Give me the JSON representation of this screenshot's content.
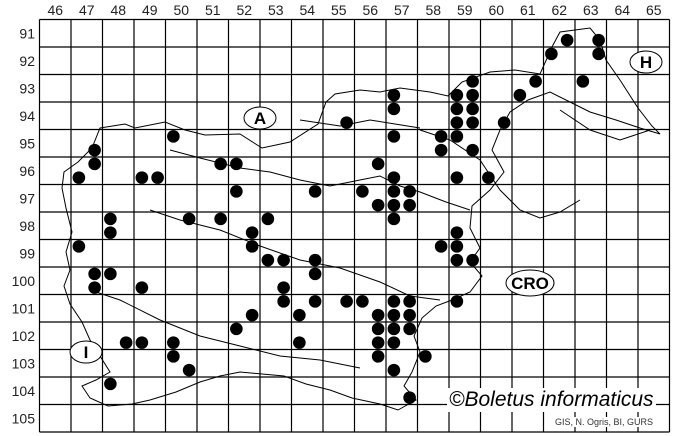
{
  "map": {
    "columns": [
      "46",
      "47",
      "48",
      "49",
      "50",
      "51",
      "52",
      "53",
      "54",
      "55",
      "56",
      "57",
      "58",
      "59",
      "60",
      "61",
      "62",
      "63",
      "64",
      "65"
    ],
    "rows": [
      "91",
      "92",
      "93",
      "94",
      "95",
      "96",
      "97",
      "98",
      "99",
      "100",
      "101",
      "102",
      "103",
      "104",
      "105"
    ],
    "country_labels": {
      "austria": "A",
      "hungary": "H",
      "italy": "I",
      "croatia": "CRO"
    },
    "copyright": "©Boletus informaticus",
    "credits": "GIS, N. Ogris, BI, GURS",
    "dot_color": "#000000",
    "records": [
      [
        62.25,
        91.25
      ],
      [
        63.25,
        91.25
      ],
      [
        61.75,
        91.75
      ],
      [
        63.25,
        91.75
      ],
      [
        59.25,
        92.75
      ],
      [
        61.25,
        92.75
      ],
      [
        62.75,
        92.75
      ],
      [
        60.75,
        93.25
      ],
      [
        56.75,
        93.25
      ],
      [
        58.75,
        93.25
      ],
      [
        59.25,
        93.25
      ],
      [
        56.75,
        93.75
      ],
      [
        58.75,
        93.75
      ],
      [
        59.25,
        93.75
      ],
      [
        55.25,
        94.25
      ],
      [
        58.75,
        94.25
      ],
      [
        59.25,
        94.25
      ],
      [
        60.25,
        94.25
      ],
      [
        56.75,
        94.75
      ],
      [
        58.25,
        94.75
      ],
      [
        58.75,
        94.75
      ],
      [
        49.75,
        94.75
      ],
      [
        58.25,
        95.25
      ],
      [
        59.25,
        95.25
      ],
      [
        47.25,
        95.25
      ],
      [
        47.25,
        95.75
      ],
      [
        56.25,
        95.75
      ],
      [
        51.25,
        95.75
      ],
      [
        51.75,
        95.75
      ],
      [
        46.75,
        96.25
      ],
      [
        48.75,
        96.25
      ],
      [
        49.25,
        96.25
      ],
      [
        56.75,
        96.25
      ],
      [
        58.75,
        96.25
      ],
      [
        59.75,
        96.25
      ],
      [
        51.75,
        96.75
      ],
      [
        54.25,
        96.75
      ],
      [
        55.75,
        96.75
      ],
      [
        56.75,
        96.75
      ],
      [
        57.25,
        96.75
      ],
      [
        56.25,
        97.25
      ],
      [
        56.75,
        97.25
      ],
      [
        57.25,
        97.25
      ],
      [
        47.75,
        97.75
      ],
      [
        50.25,
        97.75
      ],
      [
        51.25,
        97.75
      ],
      [
        52.75,
        97.75
      ],
      [
        56.75,
        97.75
      ],
      [
        47.75,
        98.25
      ],
      [
        52.25,
        98.25
      ],
      [
        58.75,
        98.25
      ],
      [
        46.75,
        98.75
      ],
      [
        52.25,
        98.75
      ],
      [
        58.25,
        98.75
      ],
      [
        58.75,
        98.75
      ],
      [
        52.75,
        99.25
      ],
      [
        53.25,
        99.25
      ],
      [
        54.25,
        99.25
      ],
      [
        58.75,
        99.25
      ],
      [
        59.25,
        99.25
      ],
      [
        54.25,
        99.75
      ],
      [
        47.25,
        99.75
      ],
      [
        47.75,
        99.75
      ],
      [
        47.25,
        100.25
      ],
      [
        48.75,
        100.25
      ],
      [
        53.25,
        100.25
      ],
      [
        53.25,
        100.75
      ],
      [
        54.25,
        100.75
      ],
      [
        55.25,
        100.75
      ],
      [
        55.75,
        100.75
      ],
      [
        56.75,
        100.75
      ],
      [
        57.25,
        100.75
      ],
      [
        58.75,
        100.75
      ],
      [
        52.25,
        101.25
      ],
      [
        53.75,
        101.25
      ],
      [
        56.25,
        101.25
      ],
      [
        56.75,
        101.25
      ],
      [
        57.25,
        101.25
      ],
      [
        51.75,
        101.75
      ],
      [
        56.25,
        101.75
      ],
      [
        56.75,
        101.75
      ],
      [
        57.25,
        101.75
      ],
      [
        48.25,
        102.25
      ],
      [
        48.75,
        102.25
      ],
      [
        49.75,
        102.25
      ],
      [
        53.75,
        102.25
      ],
      [
        56.25,
        102.25
      ],
      [
        56.75,
        102.25
      ],
      [
        49.75,
        102.75
      ],
      [
        56.25,
        102.75
      ],
      [
        57.75,
        102.75
      ],
      [
        50.25,
        103.25
      ],
      [
        56.75,
        103.25
      ],
      [
        47.75,
        103.75
      ],
      [
        57.25,
        104.25
      ]
    ]
  }
}
